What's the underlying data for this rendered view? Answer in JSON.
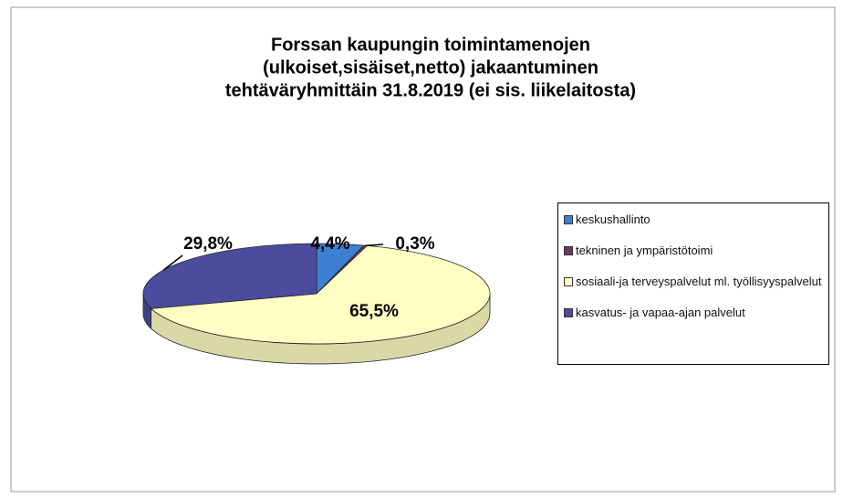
{
  "chart_data": {
    "type": "pie",
    "title": [
      "Forssan kaupungin toimintamenojen",
      "(ulkoiset,sisäiset,netto)  jakaantuminen",
      "tehtäväryhmittäin 31.8.2019 (ei sis. liikelaitosta)"
    ],
    "categories": [
      "keskushallinto",
      "tekninen ja ympäristötoimi",
      "sosiaali-ja terveyspalvelut ml. työllisyyspalvelut",
      "kasvatus- ja vapaa-ajan palvelut"
    ],
    "values": [
      4.4,
      0.3,
      65.5,
      29.8
    ],
    "value_labels": [
      "4,4%",
      "0,3%",
      "65,5%",
      "29,8%"
    ],
    "colors": [
      "#3d7fd0",
      "#6a3a5e",
      "#ffffc4",
      "#4c4c9e"
    ],
    "legend": "right"
  }
}
